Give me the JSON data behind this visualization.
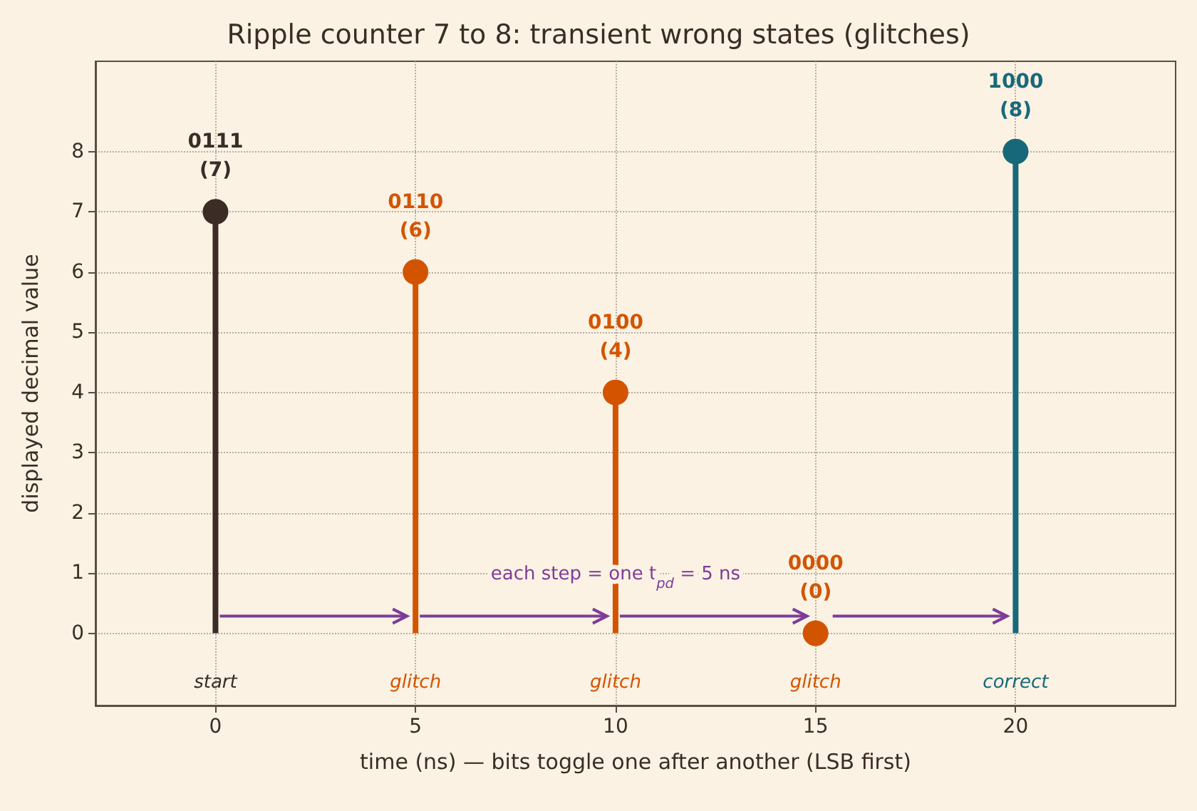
{
  "chart_data": {
    "type": "lollipop",
    "title": "Ripple counter 7 to 8: transient wrong states (glitches)",
    "xlabel": "time (ns) — bits toggle one after another (LSB first)",
    "ylabel": "displayed decimal value",
    "x": [
      0,
      5,
      10,
      15,
      20
    ],
    "values": [
      7,
      6,
      4,
      0,
      8
    ],
    "colors": [
      "#3b2c26",
      "#d35400",
      "#d35400",
      "#d35400",
      "#17697a"
    ],
    "value_labels": [
      "0111\n(7)",
      "0110\n(6)",
      "0100\n(4)",
      "0000\n(0)",
      "1000\n(8)"
    ],
    "xlim": [
      -3,
      24
    ],
    "ylim": [
      -1.2,
      9.5
    ],
    "xticks": [
      0,
      5,
      10,
      15,
      20
    ],
    "yticks": [
      0,
      1,
      2,
      3,
      4,
      5,
      6,
      7,
      8
    ],
    "grid": true,
    "marker": "circle",
    "annotations": [
      "start",
      "glitch",
      "glitch",
      "glitch",
      "correct",
      "each step = one t$_{pd}$ = 5 ns"
    ]
  }
}
